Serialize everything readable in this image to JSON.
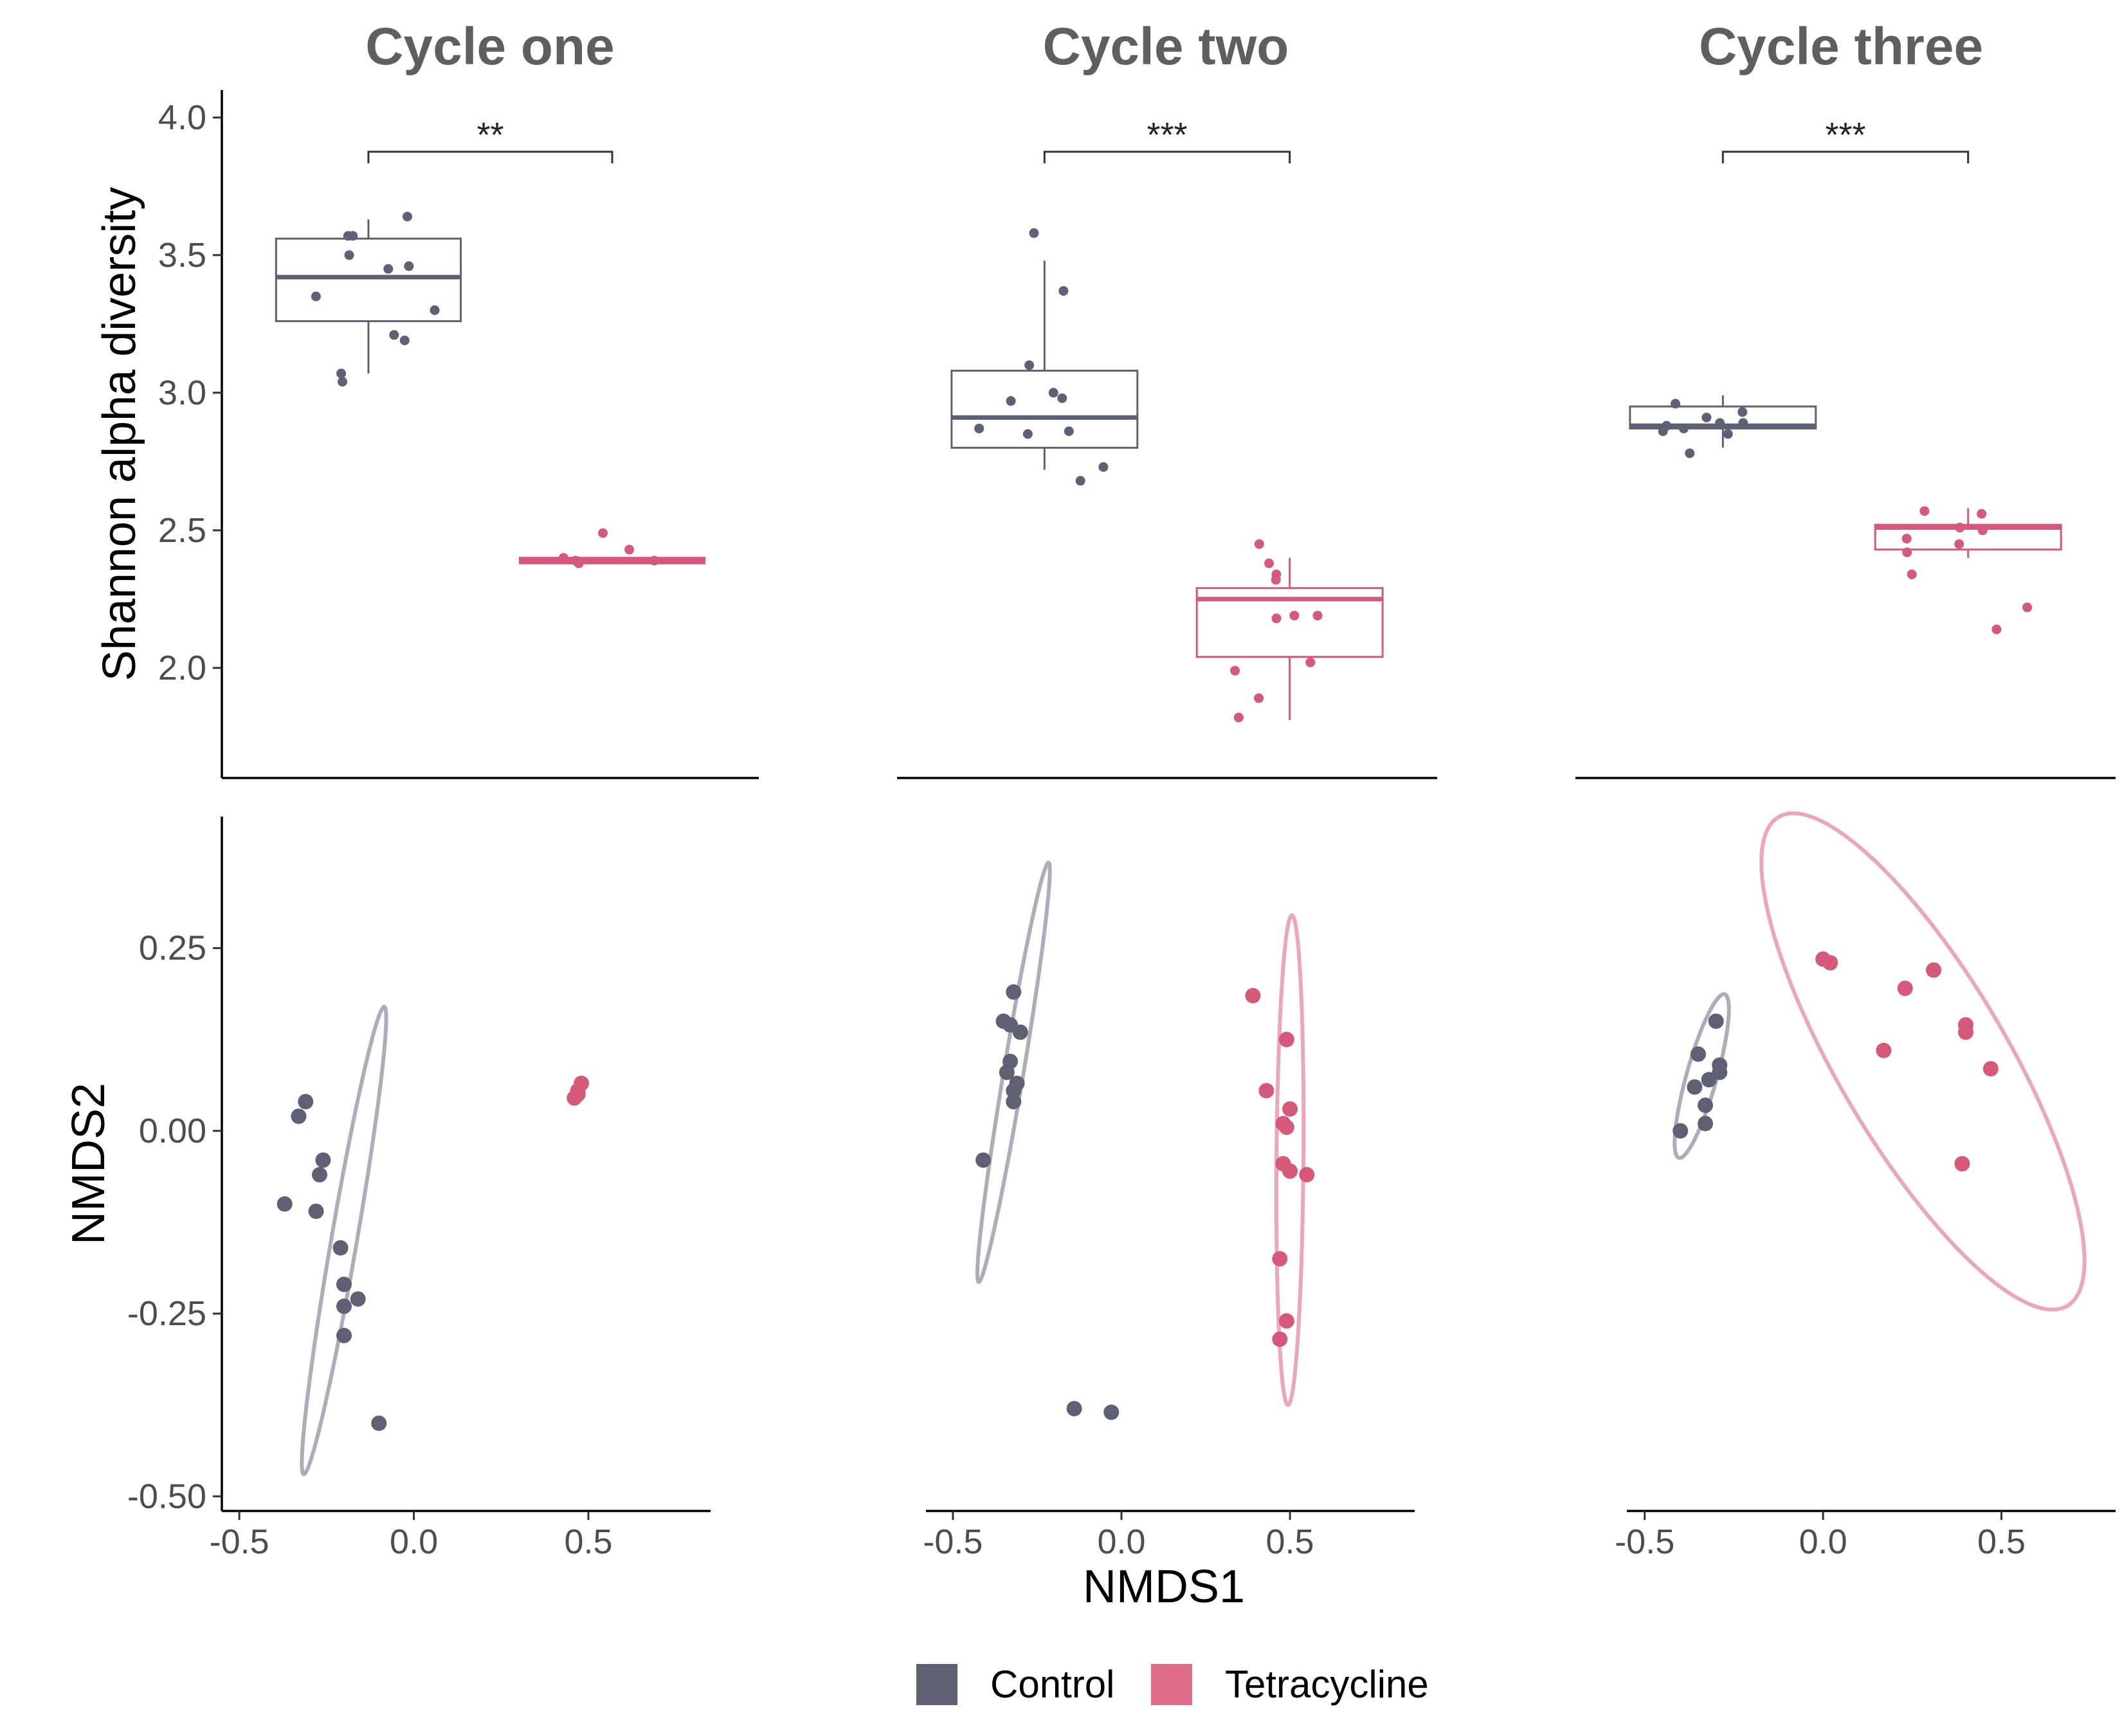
{
  "colors": {
    "control": "#5e6073",
    "tetracycline": "#d6587a",
    "control_ellipse": "#acadb8",
    "tetracycline_ellipse": "#eba7b8"
  },
  "panel_titles": [
    "Cycle one",
    "Cycle two",
    "Cycle three"
  ],
  "legend": {
    "control_label": "Control",
    "tetracycline_label": "Tetracycline"
  },
  "chart_data": [
    {
      "type": "box",
      "title": "Cycle one",
      "ylabel": "Shannon alpha diversity",
      "ylim": [
        1.6,
        4.1
      ],
      "yticks": [
        2.0,
        2.5,
        3.0,
        3.5,
        4.0
      ],
      "significance": "**",
      "groups": [
        {
          "name": "Control",
          "q1": 3.26,
          "median": 3.42,
          "q3": 3.56,
          "whisker_low": 3.07,
          "whisker_high": 3.63,
          "points": [
            3.57,
            3.57,
            3.64,
            3.46,
            3.45,
            3.5,
            3.35,
            3.3,
            3.21,
            3.19,
            3.07,
            3.04
          ]
        },
        {
          "name": "Tetracycline",
          "q1": 2.38,
          "median": 2.39,
          "q3": 2.4,
          "whisker_low": 2.38,
          "whisker_high": 2.4,
          "points": [
            2.49,
            2.43,
            2.38,
            2.4,
            2.39,
            2.39
          ]
        }
      ]
    },
    {
      "type": "box",
      "title": "Cycle two",
      "ylabel": "",
      "ylim": [
        1.6,
        4.1
      ],
      "yticks": [
        2.0,
        2.5,
        3.0,
        3.5,
        4.0
      ],
      "significance": "***",
      "groups": [
        {
          "name": "Control",
          "q1": 2.8,
          "median": 2.91,
          "q3": 3.08,
          "whisker_low": 2.72,
          "whisker_high": 3.48,
          "points": [
            3.58,
            3.37,
            3.1,
            3.0,
            2.98,
            2.97,
            2.87,
            2.86,
            2.85,
            2.73,
            2.68
          ]
        },
        {
          "name": "Tetracycline",
          "q1": 2.04,
          "median": 2.25,
          "q3": 2.29,
          "whisker_low": 1.81,
          "whisker_high": 2.4,
          "points": [
            2.45,
            2.38,
            2.34,
            2.32,
            2.19,
            2.19,
            2.18,
            2.02,
            1.99,
            1.89,
            1.82
          ]
        }
      ]
    },
    {
      "type": "box",
      "title": "Cycle three",
      "ylabel": "",
      "ylim": [
        1.6,
        4.1
      ],
      "yticks": [
        2.0,
        2.5,
        3.0,
        3.5,
        4.0
      ],
      "significance": "***",
      "groups": [
        {
          "name": "Control",
          "q1": 2.87,
          "median": 2.88,
          "q3": 2.95,
          "whisker_low": 2.8,
          "whisker_high": 2.99,
          "points": [
            2.96,
            2.93,
            2.91,
            2.89,
            2.89,
            2.88,
            2.87,
            2.86,
            2.85,
            2.78
          ]
        },
        {
          "name": "Tetracycline",
          "q1": 2.43,
          "median": 2.51,
          "q3": 2.52,
          "whisker_low": 2.4,
          "whisker_high": 2.58,
          "points": [
            2.57,
            2.56,
            2.51,
            2.5,
            2.47,
            2.45,
            2.42,
            2.34,
            2.22,
            2.14
          ]
        }
      ]
    },
    {
      "type": "scatter",
      "title": "Cycle one",
      "xlabel": "",
      "ylabel": "NMDS2",
      "xlim": [
        -0.55,
        0.85
      ],
      "ylim": [
        -0.52,
        0.43
      ],
      "xticks": [
        -0.5,
        0.0,
        0.5
      ],
      "yticks": [
        -0.5,
        -0.25,
        0.0,
        0.25
      ],
      "series": [
        {
          "name": "Control",
          "points": [
            [
              -0.31,
              0.04
            ],
            [
              -0.33,
              0.02
            ],
            [
              -0.26,
              -0.04
            ],
            [
              -0.27,
              -0.06
            ],
            [
              -0.37,
              -0.1
            ],
            [
              -0.28,
              -0.11
            ],
            [
              -0.21,
              -0.16
            ],
            [
              -0.2,
              -0.21
            ],
            [
              -0.2,
              -0.24
            ],
            [
              -0.16,
              -0.23
            ],
            [
              -0.2,
              -0.28
            ],
            [
              -0.1,
              -0.4
            ]
          ],
          "ellipse": {
            "cx": -0.2,
            "cy": -0.15,
            "rx": 0.34,
            "ry": 0.035,
            "angle_deg": 70
          }
        },
        {
          "name": "Tetracycline",
          "points": [
            [
              0.48,
              0.065
            ],
            [
              0.47,
              0.05
            ],
            [
              0.46,
              0.045
            ],
            [
              0.47,
              0.055
            ]
          ]
        }
      ]
    },
    {
      "type": "scatter",
      "title": "Cycle two",
      "xlabel": "NMDS1",
      "ylabel": "",
      "xlim": [
        -0.58,
        0.87
      ],
      "ylim": [
        -0.52,
        0.43
      ],
      "xticks": [
        -0.5,
        0.0,
        0.5
      ],
      "yticks": [
        -0.5,
        -0.25,
        0.0,
        0.25
      ],
      "series": [
        {
          "name": "Control",
          "points": [
            [
              -0.32,
              0.19
            ],
            [
              -0.35,
              0.15
            ],
            [
              -0.33,
              0.145
            ],
            [
              -0.3,
              0.135
            ],
            [
              -0.33,
              0.095
            ],
            [
              -0.34,
              0.08
            ],
            [
              -0.31,
              0.065
            ],
            [
              -0.32,
              0.055
            ],
            [
              -0.32,
              0.04
            ],
            [
              -0.41,
              -0.04
            ],
            [
              -0.14,
              -0.38
            ],
            [
              -0.03,
              -0.385
            ]
          ],
          "ellipse": {
            "cx": -0.32,
            "cy": 0.08,
            "rx": 0.305,
            "ry": 0.028,
            "angle_deg": 70
          }
        },
        {
          "name": "Tetracycline",
          "points": [
            [
              0.39,
              0.185
            ],
            [
              0.49,
              0.125
            ],
            [
              0.43,
              0.055
            ],
            [
              0.5,
              0.03
            ],
            [
              0.48,
              0.01
            ],
            [
              0.49,
              0.005
            ],
            [
              0.48,
              -0.045
            ],
            [
              0.5,
              -0.055
            ],
            [
              0.55,
              -0.06
            ],
            [
              0.47,
              -0.175
            ],
            [
              0.49,
              -0.26
            ],
            [
              0.47,
              -0.285
            ]
          ],
          "ellipse": {
            "cx": 0.5,
            "cy": -0.04,
            "rx": 0.335,
            "ry": 0.04,
            "angle_deg": 89
          }
        }
      ]
    },
    {
      "type": "scatter",
      "title": "Cycle three",
      "xlabel": "",
      "ylabel": "",
      "xlim": [
        -0.55,
        0.82
      ],
      "ylim": [
        -0.52,
        0.43
      ],
      "xticks": [
        -0.5,
        0.0,
        0.5
      ],
      "yticks": [
        -0.5,
        -0.25,
        0.0,
        0.25
      ],
      "series": [
        {
          "name": "Control",
          "points": [
            [
              -0.35,
              0.105
            ],
            [
              -0.3,
              0.15
            ],
            [
              -0.29,
              0.09
            ],
            [
              -0.29,
              0.08
            ],
            [
              -0.32,
              0.07
            ],
            [
              -0.36,
              0.06
            ],
            [
              -0.33,
              0.035
            ],
            [
              -0.33,
              0.01
            ],
            [
              -0.4,
              0.0
            ]
          ],
          "ellipse": {
            "cx": -0.34,
            "cy": 0.075,
            "rx": 0.13,
            "ry": 0.038,
            "angle_deg": 58
          }
        },
        {
          "name": "Tetracycline",
          "points": [
            [
              0.0,
              0.235
            ],
            [
              0.02,
              0.23
            ],
            [
              0.31,
              0.22
            ],
            [
              0.23,
              0.195
            ],
            [
              0.4,
              0.145
            ],
            [
              0.4,
              0.135
            ],
            [
              0.17,
              0.11
            ],
            [
              0.47,
              0.085
            ],
            [
              0.39,
              -0.045
            ]
          ],
          "ellipse": {
            "cx": 0.28,
            "cy": 0.095,
            "rx": 0.54,
            "ry": 0.17,
            "angle_deg": -35
          }
        }
      ]
    }
  ]
}
